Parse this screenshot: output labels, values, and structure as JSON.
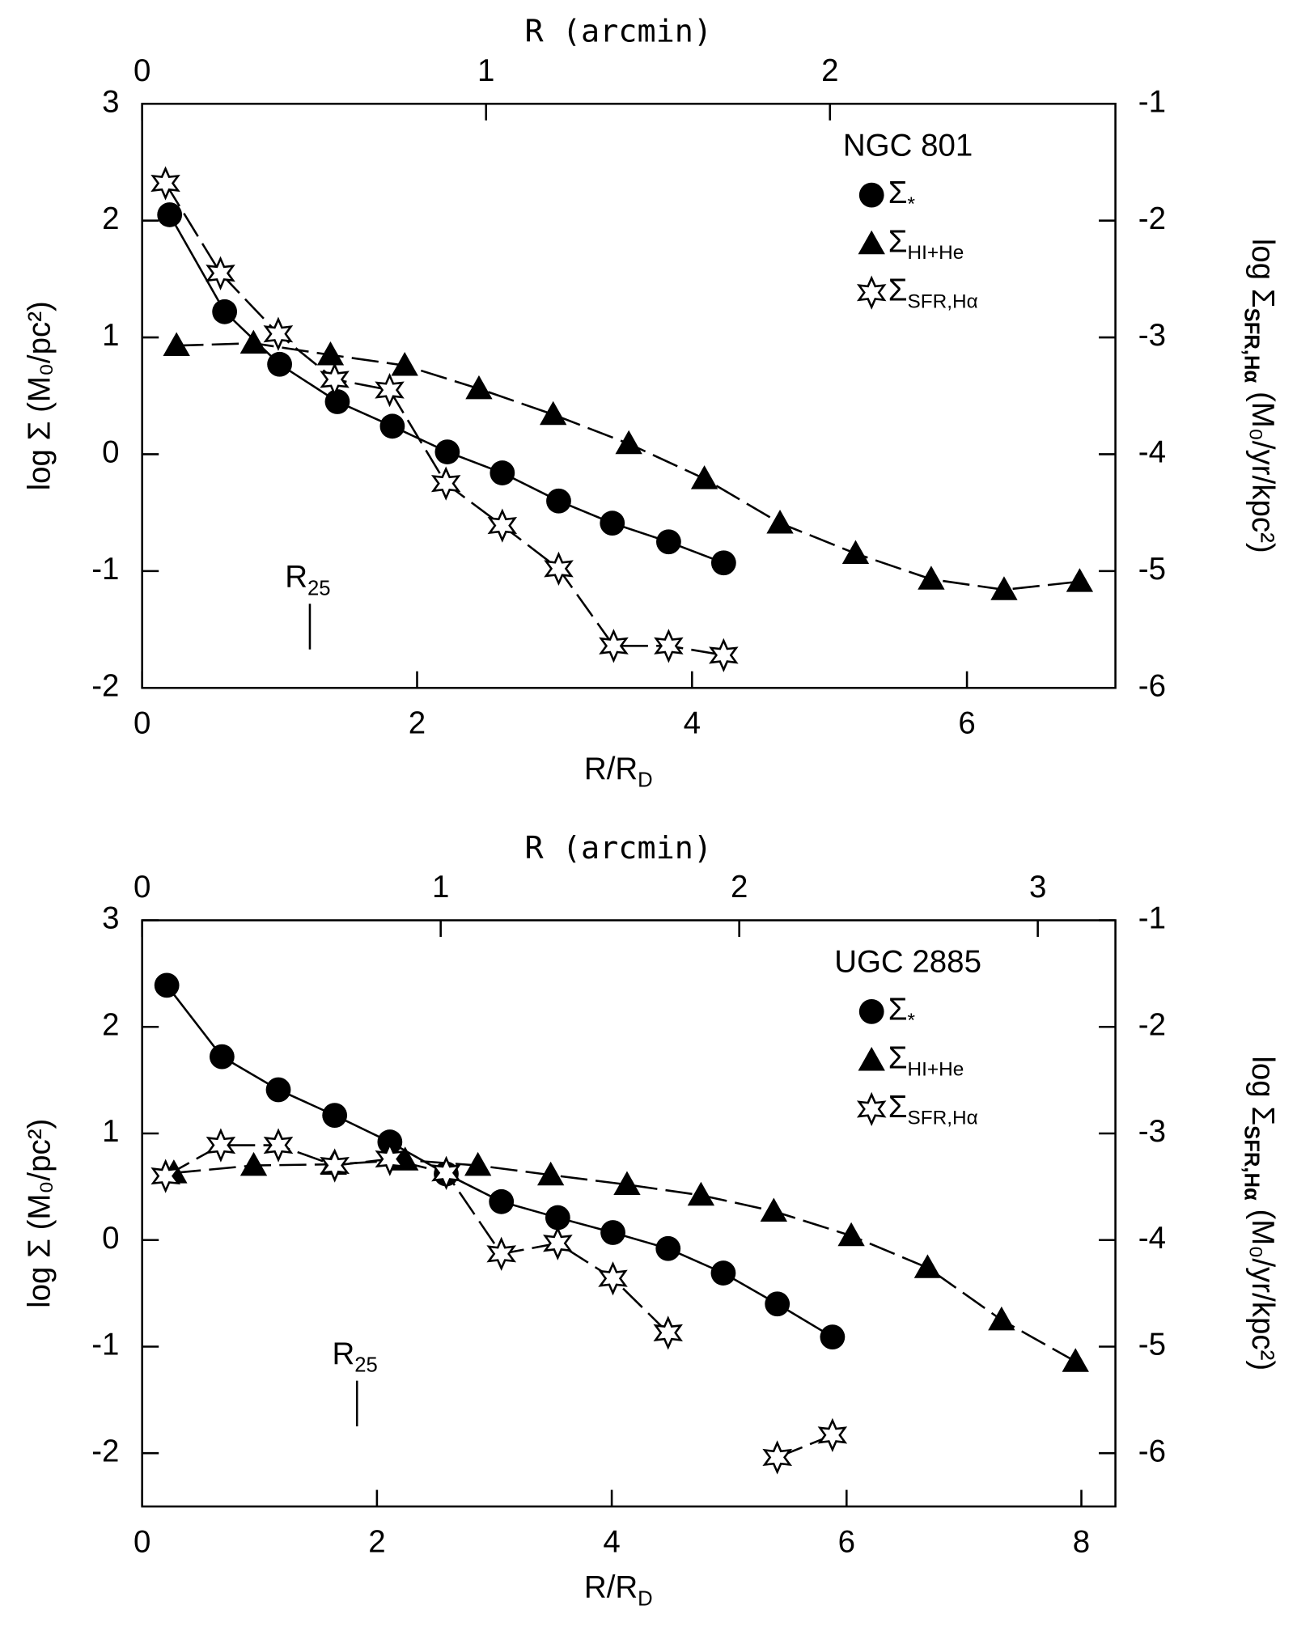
{
  "chart_data": [
    {
      "type": "line",
      "title": "NGC 801",
      "xlabel": "R/R",
      "xlabel_sub": "D",
      "x2label": "R (arcmin)",
      "ylabel": "log Σ (M₀/pc²)",
      "y2label": "log Σ",
      "y2label_sub": "SFR,Hα",
      "y2label_rest": " (M₀/yr/kpc²)",
      "xlim": [
        0,
        7.08
      ],
      "xticks": [
        0,
        2,
        4,
        6
      ],
      "x2lim": [
        0,
        2.83
      ],
      "x2ticks": [
        0,
        1,
        2
      ],
      "ylim": [
        -2,
        3
      ],
      "yticks": [
        -2,
        -1,
        0,
        1,
        2,
        3
      ],
      "y2lim": [
        -6,
        -1
      ],
      "y2ticks": [
        -6,
        -5,
        -4,
        -3,
        -2,
        -1
      ],
      "annotation": {
        "text": "R",
        "subscript": "25",
        "x": 1.22,
        "y": -1.28
      },
      "series": [
        {
          "name": "Σ",
          "subscript": "*",
          "marker": "circle",
          "color": "#000000",
          "dashed": false,
          "x": [
            0.2,
            0.6,
            1.0,
            1.42,
            1.82,
            2.22,
            2.62,
            3.03,
            3.42,
            3.83,
            4.23
          ],
          "values": [
            2.05,
            1.22,
            0.77,
            0.45,
            0.24,
            0.02,
            -0.16,
            -0.4,
            -0.59,
            -0.75,
            -0.93
          ]
        },
        {
          "name": "Σ",
          "subscript": "HI+He",
          "marker": "triangle",
          "color": "#000000",
          "dashed": true,
          "x": [
            0.25,
            0.81,
            1.37,
            1.91,
            2.45,
            2.99,
            3.54,
            4.09,
            4.64,
            5.19,
            5.74,
            6.27,
            6.82
          ],
          "values": [
            0.93,
            0.95,
            0.85,
            0.76,
            0.56,
            0.34,
            0.09,
            -0.21,
            -0.59,
            -0.85,
            -1.07,
            -1.16,
            -1.09
          ]
        },
        {
          "name": "Σ",
          "subscript": "SFR,Hα",
          "marker": "star",
          "color": "#000000",
          "dashed": true,
          "axis": "y2",
          "x": [
            0.17,
            0.57,
            0.99,
            1.4,
            1.8,
            2.21,
            2.62,
            3.03,
            3.43,
            3.83,
            4.23
          ],
          "values": [
            -1.68,
            -2.45,
            -2.97,
            -3.36,
            -3.45,
            -4.25,
            -4.61,
            -4.98,
            -5.64,
            -5.64,
            -5.72
          ]
        }
      ]
    },
    {
      "type": "line",
      "title": "UGC 2885",
      "xlabel": "R/R",
      "xlabel_sub": "D",
      "x2label": "R (arcmin)",
      "ylabel": "log Σ (M₀/pc²)",
      "y2label": "log Σ",
      "y2label_sub": "SFR,Hα",
      "y2label_rest": " (M₀/yr/kpc²)",
      "xlim": [
        0,
        8.29
      ],
      "xticks": [
        0,
        2,
        4,
        6,
        8
      ],
      "x2lim": [
        0,
        3.26
      ],
      "x2ticks": [
        0,
        1,
        2,
        3
      ],
      "ylim": [
        -2.5,
        3
      ],
      "yticks": [
        -2,
        -1,
        0,
        1,
        2,
        3
      ],
      "y2lim": [
        -6.5,
        -1
      ],
      "y2ticks": [
        -6,
        -5,
        -4,
        -3,
        -2,
        -1
      ],
      "annotation": {
        "text": "R",
        "subscript": "25",
        "x": 1.83,
        "y": -1.32
      },
      "series": [
        {
          "name": "Σ",
          "subscript": "*",
          "marker": "circle",
          "color": "#000000",
          "dashed": false,
          "x": [
            0.21,
            0.68,
            1.16,
            1.64,
            2.11,
            2.59,
            3.06,
            3.54,
            4.01,
            4.48,
            4.95,
            5.41,
            5.88
          ],
          "values": [
            2.39,
            1.72,
            1.41,
            1.17,
            0.92,
            0.62,
            0.36,
            0.21,
            0.07,
            -0.08,
            -0.31,
            -0.6,
            -0.91
          ]
        },
        {
          "name": "Σ",
          "subscript": "HI+He",
          "marker": "triangle",
          "color": "#000000",
          "dashed": true,
          "x": [
            0.27,
            0.95,
            1.63,
            2.24,
            2.86,
            3.48,
            4.13,
            4.76,
            5.38,
            6.04,
            6.69,
            7.32,
            7.95
          ],
          "values": [
            0.63,
            0.7,
            0.71,
            0.75,
            0.7,
            0.61,
            0.52,
            0.42,
            0.27,
            0.04,
            -0.26,
            -0.75,
            -1.14
          ]
        },
        {
          "name": "Σ",
          "subscript": "SFR,Hα",
          "marker": "star",
          "color": "#000000",
          "dashed": true,
          "axis": "y2",
          "x": [
            0.2,
            0.67,
            1.16,
            1.64,
            2.11,
            2.59,
            3.06,
            3.54,
            4.01,
            4.48,
            null,
            5.41,
            5.88
          ],
          "values": [
            -3.4,
            -3.11,
            -3.11,
            -3.3,
            -3.24,
            -3.37,
            -4.13,
            -4.03,
            -4.36,
            -4.87,
            null,
            -6.04,
            -5.83
          ]
        }
      ]
    }
  ]
}
